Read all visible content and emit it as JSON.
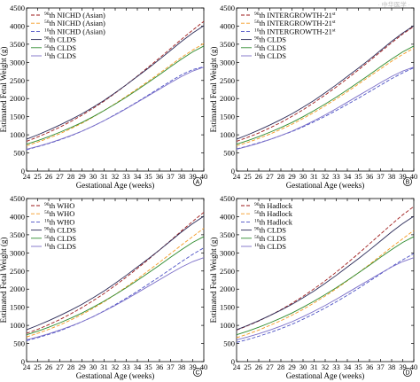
{
  "watermark": "· 中华医学 ·",
  "chart_data": [
    {
      "panel": "A",
      "type": "line",
      "xlabel": "Gestational Age (weeks)",
      "ylabel": "Estimated Fetal Weight (g)",
      "xlim": [
        24,
        40
      ],
      "ylim": [
        0,
        4500
      ],
      "xticks": [
        24,
        25,
        26,
        27,
        28,
        29,
        30,
        31,
        32,
        33,
        34,
        35,
        36,
        37,
        38,
        39,
        40
      ],
      "yticks": [
        0,
        500,
        1000,
        1500,
        2000,
        2500,
        3000,
        3500,
        4000,
        4500
      ],
      "legend_position": "top-left",
      "series": [
        {
          "sup": "90",
          "label": "NICHD (Asian)",
          "color": "#9e1b1b",
          "dash": "4,2",
          "values": [
            820,
            940,
            1070,
            1210,
            1370,
            1540,
            1730,
            1930,
            2150,
            2380,
            2620,
            2870,
            3120,
            3380,
            3640,
            3890,
            4130
          ]
        },
        {
          "sup": "50",
          "label": "NICHD (Asian)",
          "color": "#f59a23",
          "dash": "4,2",
          "values": [
            700,
            800,
            910,
            1030,
            1170,
            1320,
            1490,
            1670,
            1860,
            2060,
            2270,
            2480,
            2700,
            2920,
            3140,
            3340,
            3520
          ]
        },
        {
          "sup": "10",
          "label": "NICHD (Asian)",
          "color": "#4a4fc4",
          "dash": "4,2",
          "values": [
            590,
            670,
            760,
            860,
            970,
            1100,
            1240,
            1390,
            1560,
            1730,
            1910,
            2100,
            2290,
            2480,
            2660,
            2800,
            2880
          ]
        },
        {
          "sup": "90",
          "label": "CLDS",
          "color": "#2b2b58",
          "dash": "",
          "values": [
            880,
            1000,
            1130,
            1270,
            1420,
            1580,
            1760,
            1950,
            2160,
            2380,
            2610,
            2840,
            3080,
            3330,
            3580,
            3810,
            4010
          ]
        },
        {
          "sup": "50",
          "label": "CLDS",
          "color": "#2e8b2e",
          "dash": "",
          "values": [
            740,
            840,
            950,
            1070,
            1200,
            1340,
            1500,
            1670,
            1850,
            2040,
            2240,
            2450,
            2660,
            2880,
            3090,
            3290,
            3450
          ]
        },
        {
          "sup": "10",
          "label": "CLDS",
          "color": "#7b6fc8",
          "dash": "",
          "values": [
            600,
            680,
            770,
            870,
            980,
            1100,
            1240,
            1390,
            1550,
            1720,
            1900,
            2080,
            2260,
            2440,
            2610,
            2760,
            2870
          ]
        }
      ]
    },
    {
      "panel": "B",
      "type": "line",
      "xlabel": "Gestational Age (weeks)",
      "ylabel": "Estimated Fetal Weight (g)",
      "xlim": [
        24,
        40
      ],
      "ylim": [
        0,
        4500
      ],
      "xticks": [
        24,
        25,
        26,
        27,
        28,
        29,
        30,
        31,
        32,
        33,
        34,
        35,
        36,
        37,
        38,
        39,
        40
      ],
      "yticks": [
        0,
        500,
        1000,
        1500,
        2000,
        2500,
        3000,
        3500,
        4000,
        4500
      ],
      "legend_position": "top-left",
      "series": [
        {
          "sup": "90",
          "label": "INTERGROWTH-21",
          "label_sup": "st",
          "color": "#9e1b1b",
          "dash": "4,2",
          "values": [
            820,
            930,
            1050,
            1190,
            1340,
            1510,
            1690,
            1890,
            2100,
            2320,
            2550,
            2790,
            3040,
            3290,
            3540,
            3780,
            3990
          ]
        },
        {
          "sup": "50",
          "label": "INTERGROWTH-21",
          "label_sup": "st",
          "color": "#f59a23",
          "dash": "4,2",
          "values": [
            700,
            790,
            900,
            1020,
            1150,
            1290,
            1450,
            1620,
            1800,
            1990,
            2190,
            2400,
            2610,
            2820,
            3030,
            3220,
            3390
          ]
        },
        {
          "sup": "10",
          "label": "INTERGROWTH-21",
          "label_sup": "st",
          "color": "#4a4fc4",
          "dash": "4,2",
          "values": [
            610,
            690,
            780,
            870,
            980,
            1090,
            1220,
            1360,
            1510,
            1670,
            1840,
            2010,
            2190,
            2370,
            2550,
            2710,
            2850
          ]
        },
        {
          "sup": "90",
          "label": "CLDS",
          "color": "#2b2b58",
          "dash": "",
          "values": [
            880,
            1000,
            1130,
            1270,
            1420,
            1580,
            1760,
            1950,
            2160,
            2380,
            2610,
            2840,
            3080,
            3330,
            3580,
            3810,
            4010
          ]
        },
        {
          "sup": "50",
          "label": "CLDS",
          "color": "#2e8b2e",
          "dash": "",
          "values": [
            740,
            840,
            950,
            1070,
            1200,
            1340,
            1500,
            1670,
            1850,
            2040,
            2240,
            2450,
            2660,
            2880,
            3090,
            3290,
            3450
          ]
        },
        {
          "sup": "10",
          "label": "CLDS",
          "color": "#7b6fc8",
          "dash": "",
          "values": [
            600,
            680,
            770,
            870,
            980,
            1100,
            1240,
            1390,
            1550,
            1720,
            1900,
            2080,
            2260,
            2440,
            2610,
            2760,
            2870
          ]
        }
      ]
    },
    {
      "panel": "C",
      "type": "line",
      "xlabel": "Gestational Age (weeks)",
      "ylabel": "Estimated Fetal Weight (g)",
      "xlim": [
        24,
        40
      ],
      "ylim": [
        0,
        4500
      ],
      "xticks": [
        24,
        25,
        26,
        27,
        28,
        29,
        30,
        31,
        32,
        33,
        34,
        35,
        36,
        37,
        38,
        39,
        40
      ],
      "yticks": [
        0,
        500,
        1000,
        1500,
        2000,
        2500,
        3000,
        3500,
        4000,
        4500
      ],
      "legend_position": "top-left",
      "series": [
        {
          "sup": "90",
          "label": "WHO",
          "color": "#9e1b1b",
          "dash": "4,2",
          "values": [
            780,
            890,
            1020,
            1160,
            1320,
            1490,
            1680,
            1880,
            2100,
            2330,
            2570,
            2820,
            3080,
            3340,
            3610,
            3870,
            4120
          ]
        },
        {
          "sup": "50",
          "label": "WHO",
          "color": "#f59a23",
          "dash": "4,2",
          "values": [
            680,
            780,
            890,
            1010,
            1150,
            1300,
            1470,
            1650,
            1850,
            2060,
            2280,
            2510,
            2740,
            2980,
            3220,
            3450,
            3680
          ]
        },
        {
          "sup": "10",
          "label": "WHO",
          "color": "#4a4fc4",
          "dash": "4,2",
          "values": [
            580,
            660,
            750,
            850,
            970,
            1100,
            1240,
            1400,
            1570,
            1750,
            1940,
            2140,
            2340,
            2550,
            2760,
            2960,
            3140
          ]
        },
        {
          "sup": "90",
          "label": "CLDS",
          "color": "#2b2b58",
          "dash": "",
          "values": [
            880,
            1000,
            1130,
            1270,
            1420,
            1580,
            1760,
            1950,
            2160,
            2380,
            2610,
            2840,
            3080,
            3330,
            3580,
            3810,
            4010
          ]
        },
        {
          "sup": "50",
          "label": "CLDS",
          "color": "#2e8b2e",
          "dash": "",
          "values": [
            740,
            840,
            950,
            1070,
            1200,
            1340,
            1500,
            1670,
            1850,
            2040,
            2240,
            2450,
            2660,
            2880,
            3090,
            3290,
            3450
          ]
        },
        {
          "sup": "10",
          "label": "CLDS",
          "color": "#7b6fc8",
          "dash": "",
          "values": [
            600,
            680,
            770,
            870,
            980,
            1100,
            1240,
            1390,
            1550,
            1720,
            1900,
            2080,
            2260,
            2440,
            2610,
            2760,
            2870
          ]
        }
      ]
    },
    {
      "panel": "D",
      "type": "line",
      "xlabel": "Gestational Age (weeks)",
      "ylabel": "Estimated Fetal Weight (g)",
      "xlim": [
        24,
        40
      ],
      "ylim": [
        0,
        4500
      ],
      "xticks": [
        24,
        25,
        26,
        27,
        28,
        29,
        30,
        31,
        32,
        33,
        34,
        35,
        36,
        37,
        38,
        39,
        40
      ],
      "yticks": [
        0,
        500,
        1000,
        1500,
        2000,
        2500,
        3000,
        3500,
        4000,
        4500
      ],
      "legend_position": "top-left",
      "series": [
        {
          "sup": "90",
          "label": "Hadlock",
          "color": "#9e1b1b",
          "dash": "4,2",
          "values": [
            870,
            990,
            1120,
            1270,
            1430,
            1610,
            1800,
            2010,
            2230,
            2470,
            2720,
            2980,
            3250,
            3520,
            3790,
            4050,
            4280
          ]
        },
        {
          "sup": "50",
          "label": "Hadlock",
          "color": "#f59a23",
          "dash": "4,2",
          "values": [
            660,
            760,
            870,
            1000,
            1130,
            1280,
            1440,
            1620,
            1810,
            2010,
            2230,
            2450,
            2680,
            2920,
            3160,
            3390,
            3620
          ]
        },
        {
          "sup": "10",
          "label": "Hadlock",
          "color": "#4a4fc4",
          "dash": "4,2",
          "values": [
            530,
            610,
            700,
            800,
            910,
            1030,
            1170,
            1320,
            1480,
            1650,
            1830,
            2020,
            2220,
            2420,
            2620,
            2810,
            2980
          ]
        },
        {
          "sup": "90",
          "label": "CLDS",
          "color": "#2b2b58",
          "dash": "",
          "values": [
            880,
            1000,
            1130,
            1270,
            1420,
            1580,
            1760,
            1950,
            2160,
            2380,
            2610,
            2840,
            3080,
            3330,
            3580,
            3810,
            4010
          ]
        },
        {
          "sup": "50",
          "label": "CLDS",
          "color": "#2e8b2e",
          "dash": "",
          "values": [
            740,
            840,
            950,
            1070,
            1200,
            1340,
            1500,
            1670,
            1850,
            2040,
            2240,
            2450,
            2660,
            2880,
            3090,
            3290,
            3450
          ]
        },
        {
          "sup": "10",
          "label": "CLDS",
          "color": "#7b6fc8",
          "dash": "",
          "values": [
            600,
            680,
            770,
            870,
            980,
            1100,
            1240,
            1390,
            1550,
            1720,
            1900,
            2080,
            2260,
            2440,
            2610,
            2760,
            2870
          ]
        }
      ]
    }
  ]
}
